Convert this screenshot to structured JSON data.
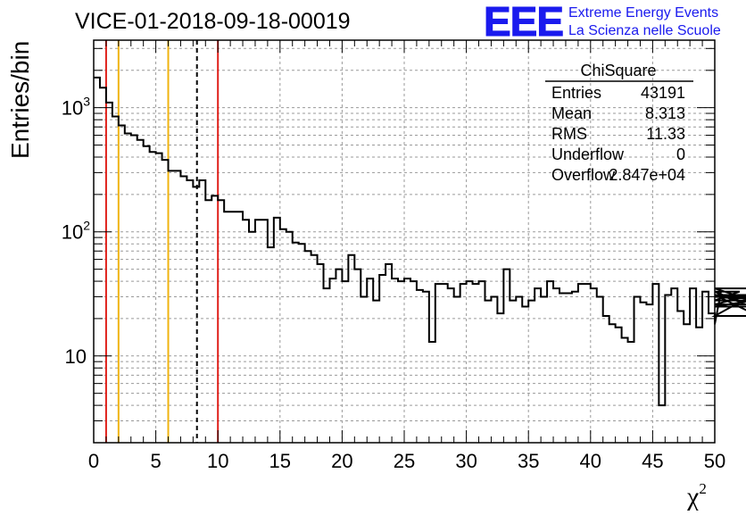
{
  "header": {
    "run_title": "VICE-01-2018-09-18-00019",
    "logo_text": "EEE",
    "brand_line1": "Extreme Energy Events",
    "brand_line2": "La Scienza nelle Scuole",
    "brand_color": "#1a1aee"
  },
  "stats_box": {
    "title": "ChiSquare",
    "rows": [
      {
        "label": "Entries",
        "value": "43191"
      },
      {
        "label": "Mean",
        "value": "8.313"
      },
      {
        "label": "RMS",
        "value": "11.33"
      },
      {
        "label": "Underflow",
        "value": "0"
      },
      {
        "label": "Overflow",
        "value": "2.847e+04"
      }
    ]
  },
  "chart_data": {
    "type": "histogram",
    "xlabel_base": "χ",
    "xlabel_sup": "2",
    "ylabel": "Entries/bin",
    "xlim": [
      0,
      50
    ],
    "ylim": [
      2,
      3500
    ],
    "yscale": "log",
    "grid": true,
    "x_ticks": [
      "0",
      "5",
      "10",
      "15",
      "20",
      "25",
      "30",
      "35",
      "40",
      "45",
      "50"
    ],
    "y_ticks": [
      {
        "value": 10,
        "base": "10",
        "exp": ""
      },
      {
        "value": 100,
        "base": "10",
        "exp": "2"
      },
      {
        "value": 1000,
        "base": "10",
        "exp": "3"
      }
    ],
    "bin_width": 0.5,
    "bin_start": 0,
    "values": [
      1750,
      1450,
      1100,
      850,
      720,
      620,
      600,
      550,
      490,
      440,
      430,
      380,
      310,
      310,
      280,
      260,
      230,
      260,
      180,
      195,
      180,
      145,
      145,
      145,
      125,
      100,
      125,
      125,
      75,
      130,
      105,
      100,
      82,
      80,
      70,
      65,
      55,
      35,
      42,
      50,
      40,
      65,
      50,
      30,
      42,
      28,
      45,
      55,
      42,
      40,
      42,
      40,
      34,
      33,
      13,
      38,
      38,
      35,
      30,
      38,
      40,
      38,
      40,
      28,
      30,
      22,
      50,
      28,
      30,
      25,
      28,
      35,
      30,
      40,
      35,
      32,
      32,
      33,
      38,
      38,
      35,
      30,
      21,
      18,
      17,
      14,
      13,
      30,
      27,
      26,
      38,
      4,
      31,
      35,
      23,
      18,
      35,
      17,
      33,
      22,
      18,
      33,
      33,
      28,
      33,
      26,
      31,
      21,
      35,
      25,
      30,
      30,
      28
    ]
  },
  "reference_lines": [
    {
      "x": 1,
      "color": "#e0201a",
      "style": "solid"
    },
    {
      "x": 2,
      "color": "#f0b410",
      "style": "solid"
    },
    {
      "x": 6,
      "color": "#f0b410",
      "style": "solid"
    },
    {
      "x": 8.313,
      "color": "#000000",
      "style": "dashed"
    },
    {
      "x": 10,
      "color": "#e0201a",
      "style": "solid"
    }
  ]
}
